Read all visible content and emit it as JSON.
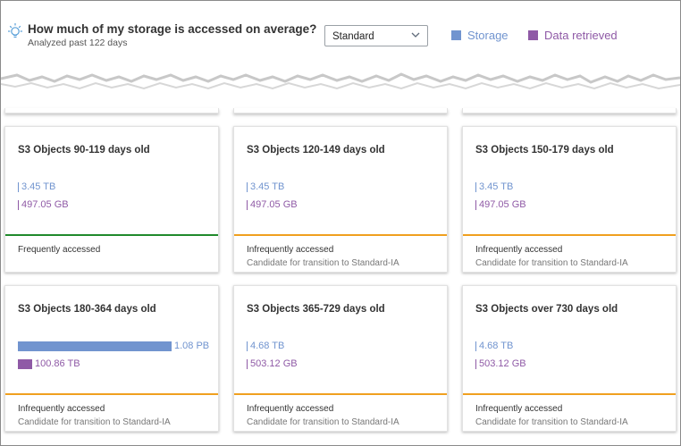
{
  "header": {
    "title": "How much of my storage is accessed on average?",
    "subtitle": "Analyzed past 122 days",
    "storage_class_select": {
      "value": "Standard"
    },
    "legend": [
      {
        "label": "Storage",
        "color": "#7194cf"
      },
      {
        "label": "Data retrieved",
        "color": "#8f5aa6"
      }
    ]
  },
  "colors": {
    "storage": "#7194cf",
    "retrieved": "#8f5aa6",
    "frequent": "#218a2c",
    "infrequent": "#f0a01f"
  },
  "icons": {
    "header": "lightbulb-icon",
    "select": "chevron-down-icon"
  },
  "max_storage_value": "1.08 PB",
  "cards": [
    {
      "title": "S3 Objects 90-119 days old",
      "storage": "3.45 TB",
      "retrieved": "497.05 GB",
      "storage_fraction_of_max": 0.003,
      "retrieved_fraction_of_max": 0.0004,
      "status": "Frequently accessed",
      "note": "",
      "status_color": "#218a2c"
    },
    {
      "title": "S3 Objects 120-149 days old",
      "storage": "3.45 TB",
      "retrieved": "497.05 GB",
      "storage_fraction_of_max": 0.003,
      "retrieved_fraction_of_max": 0.0004,
      "status": "Infrequently accessed",
      "note": "Candidate for transition to Standard-IA",
      "status_color": "#f0a01f"
    },
    {
      "title": "S3 Objects 150-179 days old",
      "storage": "3.45 TB",
      "retrieved": "497.05 GB",
      "storage_fraction_of_max": 0.003,
      "retrieved_fraction_of_max": 0.0004,
      "status": "Infrequently accessed",
      "note": "Candidate for transition to Standard-IA",
      "status_color": "#f0a01f"
    },
    {
      "title": "S3 Objects 180-364 days old",
      "storage": "1.08 PB",
      "retrieved": "100.86 TB",
      "storage_fraction_of_max": 1.0,
      "retrieved_fraction_of_max": 0.093,
      "status": "Infrequently accessed",
      "note": "Candidate for transition to Standard-IA",
      "status_color": "#f0a01f"
    },
    {
      "title": "S3 Objects 365-729 days old",
      "storage": "4.68 TB",
      "retrieved": "503.12 GB",
      "storage_fraction_of_max": 0.004,
      "retrieved_fraction_of_max": 0.0005,
      "status": "Infrequently accessed",
      "note": "Candidate for transition to Standard-IA",
      "status_color": "#f0a01f"
    },
    {
      "title": "S3 Objects over 730 days old",
      "storage": "4.68 TB",
      "retrieved": "503.12 GB",
      "storage_fraction_of_max": 0.004,
      "retrieved_fraction_of_max": 0.0005,
      "status": "Infrequently accessed",
      "note": "Candidate for transition to Standard-IA",
      "status_color": "#f0a01f"
    }
  ]
}
